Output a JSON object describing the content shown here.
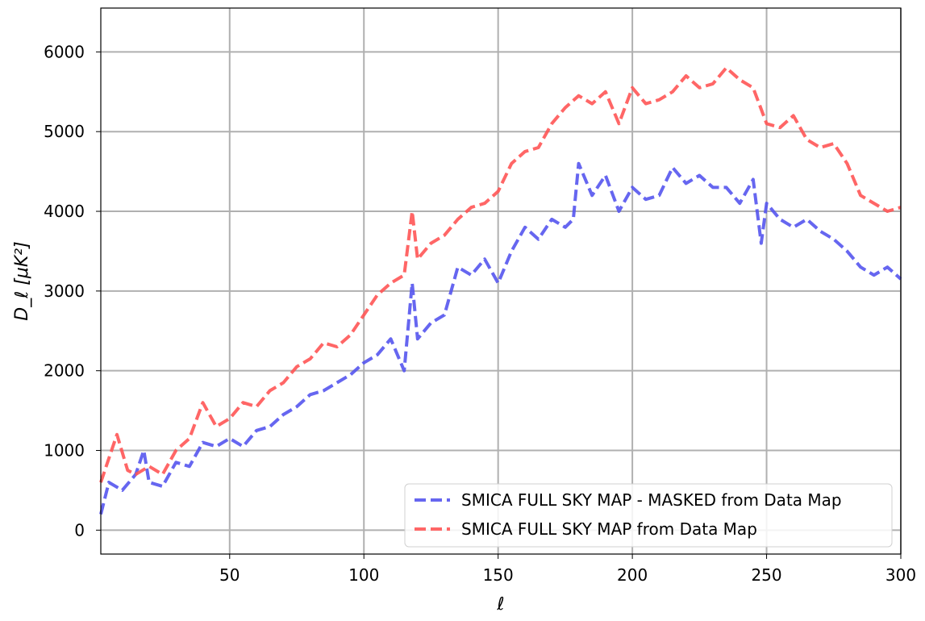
{
  "chart_data": {
    "type": "line",
    "xlabel": "ℓ",
    "ylabel": "D_ℓ [μK²]",
    "xlim": [
      2,
      300
    ],
    "ylim": [
      -300,
      6550
    ],
    "grid": true,
    "legend_position": "lower-right",
    "x_ticks": [
      50,
      100,
      150,
      200,
      250,
      300
    ],
    "y_ticks": [
      0,
      1000,
      2000,
      3000,
      4000,
      5000,
      6000
    ],
    "series": [
      {
        "name": "SMICA FULL SKY MAP - MASKED from Data Map",
        "color": "#5555ee",
        "style": "dashed",
        "x": [
          2,
          5,
          10,
          15,
          18,
          20,
          25,
          30,
          35,
          40,
          45,
          50,
          55,
          60,
          65,
          70,
          75,
          80,
          85,
          90,
          95,
          100,
          105,
          110,
          115,
          118,
          120,
          125,
          130,
          135,
          140,
          145,
          150,
          155,
          160,
          165,
          170,
          175,
          178,
          180,
          185,
          190,
          195,
          200,
          205,
          210,
          215,
          220,
          225,
          230,
          235,
          240,
          245,
          248,
          250,
          255,
          260,
          265,
          270,
          275,
          280,
          285,
          290,
          295,
          300
        ],
        "y": [
          200,
          600,
          500,
          700,
          1000,
          600,
          550,
          850,
          800,
          1100,
          1050,
          1150,
          1050,
          1250,
          1300,
          1450,
          1550,
          1700,
          1750,
          1850,
          1950,
          2100,
          2200,
          2400,
          2000,
          3100,
          2400,
          2600,
          2700,
          3300,
          3200,
          3400,
          3100,
          3500,
          3800,
          3650,
          3900,
          3800,
          3900,
          4600,
          4200,
          4450,
          4000,
          4300,
          4150,
          4200,
          4550,
          4350,
          4450,
          4300,
          4300,
          4100,
          4400,
          3600,
          4100,
          3900,
          3800,
          3900,
          3750,
          3650,
          3500,
          3300,
          3200,
          3300,
          3150
        ]
      },
      {
        "name": "SMICA FULL SKY MAP from Data Map",
        "color": "#ff5555",
        "style": "dashed",
        "x": [
          2,
          5,
          8,
          12,
          15,
          20,
          25,
          30,
          35,
          40,
          45,
          50,
          55,
          60,
          65,
          70,
          75,
          80,
          85,
          90,
          95,
          100,
          105,
          110,
          115,
          118,
          120,
          125,
          130,
          135,
          140,
          145,
          150,
          155,
          160,
          165,
          170,
          175,
          180,
          185,
          190,
          195,
          200,
          205,
          210,
          215,
          220,
          225,
          230,
          235,
          240,
          245,
          250,
          255,
          260,
          265,
          270,
          275,
          280,
          285,
          290,
          295,
          300
        ],
        "y": [
          600,
          900,
          1200,
          750,
          700,
          800,
          700,
          1000,
          1150,
          1600,
          1300,
          1400,
          1600,
          1550,
          1750,
          1850,
          2050,
          2150,
          2350,
          2300,
          2450,
          2700,
          2950,
          3100,
          3200,
          4000,
          3400,
          3600,
          3700,
          3900,
          4050,
          4100,
          4250,
          4600,
          4750,
          4800,
          5100,
          5300,
          5450,
          5350,
          5500,
          5100,
          5550,
          5350,
          5400,
          5500,
          5700,
          5550,
          5600,
          5800,
          5650,
          5550,
          5100,
          5050,
          5200,
          4900,
          4800,
          4850,
          4600,
          4200,
          4100,
          4000,
          4050
        ]
      }
    ]
  }
}
